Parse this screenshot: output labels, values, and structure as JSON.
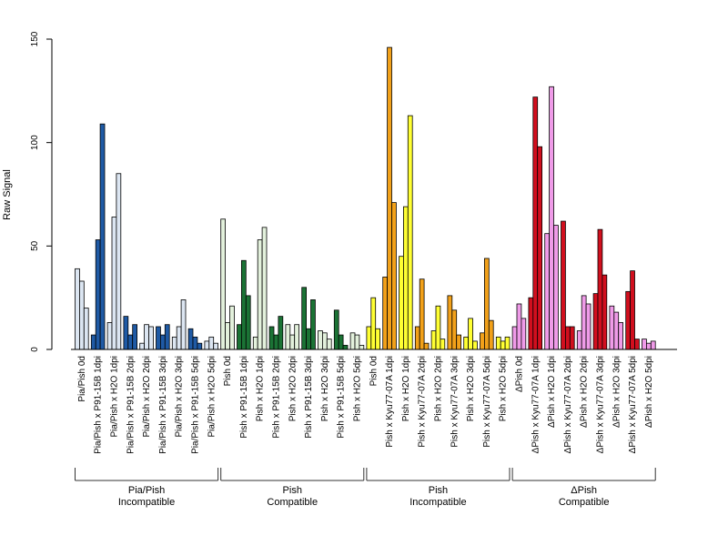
{
  "chart_data": {
    "type": "bar",
    "ylabel": "Raw Signal",
    "ylim": [
      0,
      150
    ],
    "yticks": [
      0,
      50,
      100,
      150
    ],
    "bars_per_category": 3,
    "categories": [
      "Pia/Pish 0d",
      "Pia/Pish x P91-15B 1dpi",
      "Pia/Pish x H2O 1dpi",
      "Pia/Pish x P91-15B 2dpi",
      "Pia/Pish x H2O 2dpi",
      "Pia/Pish x P91-15B 3dpi",
      "Pia/Pish x H2O 3dpi",
      "Pia/Pish x P91-15B 5dpi",
      "Pia/Pish x H2O 5dpi",
      "Pish 0d",
      "Pish x P91-15B 1dpi",
      "Pish x H2O 1dpi",
      "Pish x P91-15B 2dpi",
      "Pish x H2O 2dpi",
      "Pish x P91-15B 3dpi",
      "Pish x H2O 3dpi",
      "Pish x P91-15B 5dpi",
      "Pish x H2O 5dpi",
      "Pish 0d",
      "Pish x Kyu77-07A 1dpi",
      "Pish x H2O 1dpi",
      "Pish x Kyu77-07A 2dpi",
      "Pish x H2O 2dpi",
      "Pish x Kyu77-07A 3dpi",
      "Pish x H2O 3dpi",
      "Pish x Kyu77-07A 5dpi",
      "Pish x H2O 5dpi",
      "ΔPish 0d",
      "ΔPish x Kyu77-07A 1dpi",
      "ΔPish x H2O 1dpi",
      "ΔPish x Kyu77-07A 2dpi",
      "ΔPish x H2O 2dpi",
      "ΔPish x Kyu77-07A 3dpi",
      "ΔPish x H2O 3dpi",
      "ΔPish x Kyu77-07A 5dpi",
      "ΔPish x H2O 5dpi"
    ],
    "values": [
      [
        39,
        33,
        20
      ],
      [
        7,
        53,
        109
      ],
      [
        13,
        64,
        85
      ],
      [
        16,
        7,
        12
      ],
      [
        3,
        12,
        11
      ],
      [
        11,
        7,
        12
      ],
      [
        6,
        11,
        24
      ],
      [
        10,
        6,
        3
      ],
      [
        4,
        6,
        3
      ],
      [
        63,
        13,
        21
      ],
      [
        12,
        43,
        26
      ],
      [
        6,
        53,
        59
      ],
      [
        11,
        7,
        16
      ],
      [
        12,
        7,
        12
      ],
      [
        30,
        10,
        24
      ],
      [
        9,
        8,
        5
      ],
      [
        19,
        7,
        2
      ],
      [
        8,
        7,
        2
      ],
      [
        11,
        25,
        10
      ],
      [
        35,
        146,
        71
      ],
      [
        45,
        69,
        113
      ],
      [
        11,
        34,
        3
      ],
      [
        9,
        21,
        5
      ],
      [
        26,
        19,
        7
      ],
      [
        6,
        15,
        4
      ],
      [
        8,
        44,
        14
      ],
      [
        6,
        4,
        6
      ],
      [
        11,
        22,
        15
      ],
      [
        25,
        122,
        98
      ],
      [
        56,
        127,
        60
      ],
      [
        62,
        11,
        11
      ],
      [
        9,
        26,
        22
      ],
      [
        27,
        58,
        36
      ],
      [
        21,
        18,
        13
      ],
      [
        28,
        38,
        5
      ],
      [
        5,
        3,
        4
      ]
    ],
    "category_colors": [
      "#dce6f2",
      "#1f5aa5",
      "#dce6f2",
      "#1f5aa5",
      "#dce6f2",
      "#1f5aa5",
      "#dce6f2",
      "#1f5aa5",
      "#dce6f2",
      "#e3f1dc",
      "#1b7335",
      "#e3f1dc",
      "#1b7335",
      "#e3f1dc",
      "#1b7335",
      "#e3f1dc",
      "#1b7335",
      "#e3f1dc",
      "#ffff33",
      "#f2a11a",
      "#ffff33",
      "#f2a11a",
      "#ffff33",
      "#f2a11a",
      "#ffff33",
      "#f2a11a",
      "#ffff33",
      "#ef9be8",
      "#d10f1e",
      "#ef9be8",
      "#d10f1e",
      "#ef9be8",
      "#d10f1e",
      "#ef9be8",
      "#d10f1e",
      "#ef9be8"
    ],
    "groups": [
      {
        "line1": "Pia/Pish",
        "line2": "Incompatible",
        "first": 0,
        "last": 8
      },
      {
        "line1": "Pish",
        "line2": "Compatible",
        "first": 9,
        "last": 17
      },
      {
        "line1": "Pish",
        "line2": "Incompatible",
        "first": 18,
        "last": 26
      },
      {
        "line1": "ΔPish",
        "line2": "Compatible",
        "first": 27,
        "last": 35
      }
    ],
    "legend": "none",
    "grid": false
  }
}
